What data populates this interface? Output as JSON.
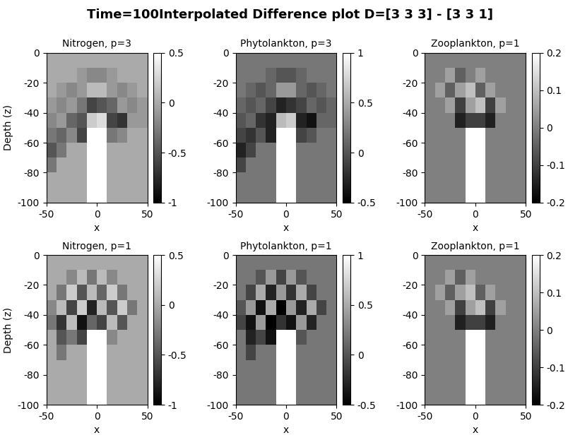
{
  "title": "Time=100Interpolated Difference plot D=[3 3 3] - [3 3 1]",
  "chart_data": [
    {
      "type": "heatmap",
      "title": "Nitrogen, p=3",
      "xlabel": "x",
      "ylabel": "Depth (z)",
      "x_edges": [
        -50,
        -40,
        -30,
        -20,
        -10,
        0,
        10,
        20,
        30,
        40,
        50
      ],
      "y_edges": [
        0,
        -10,
        -20,
        -30,
        -40,
        -50,
        -60,
        -70,
        -80,
        -90,
        -100
      ],
      "xlim": [
        -50,
        50
      ],
      "ylim": [
        -100,
        0
      ],
      "xticks": [
        -50,
        0,
        50
      ],
      "yticks": [
        -100,
        -80,
        -60,
        -40,
        -20,
        0
      ],
      "colorbar_range": [
        -1,
        0.5
      ],
      "colorbar_ticks": [
        -1,
        -0.5,
        0,
        0.5
      ],
      "cells": [
        [
          0,
          0,
          0,
          0,
          0,
          0,
          0,
          0,
          0,
          0
        ],
        [
          0,
          0,
          0,
          -0.1,
          -0.2,
          -0.2,
          -0.1,
          0,
          0,
          0
        ],
        [
          0,
          -0.1,
          -0.2,
          -0.1,
          0.1,
          0.1,
          -0.1,
          -0.2,
          -0.1,
          0
        ],
        [
          -0.1,
          -0.2,
          -0.1,
          -0.3,
          -0.6,
          -0.5,
          -0.4,
          -0.1,
          -0.2,
          -0.1
        ],
        [
          -0.2,
          -0.1,
          -0.4,
          -0.5,
          0.2,
          0.3,
          -0.6,
          -0.7,
          -0.1,
          -0.1
        ],
        [
          -0.3,
          -0.4,
          -0.2,
          -0.6,
          null,
          null,
          -0.3,
          -0.2,
          0,
          0
        ],
        [
          -0.5,
          -0.3,
          0,
          0,
          null,
          null,
          0,
          0,
          0,
          0
        ],
        [
          -0.3,
          0,
          0,
          0,
          null,
          null,
          0,
          0,
          0,
          0
        ],
        [
          0,
          0,
          0,
          0,
          null,
          null,
          0,
          0,
          0,
          0
        ],
        [
          0,
          0,
          0,
          0,
          null,
          null,
          0,
          0,
          0,
          0
        ]
      ]
    },
    {
      "type": "heatmap",
      "title": "Phytolankton, p=3",
      "xlabel": "x",
      "x_edges": [
        -50,
        -40,
        -30,
        -20,
        -10,
        0,
        10,
        20,
        30,
        40,
        50
      ],
      "y_edges": [
        0,
        -10,
        -20,
        -30,
        -40,
        -50,
        -60,
        -70,
        -80,
        -90,
        -100
      ],
      "xlim": [
        -50,
        50
      ],
      "ylim": [
        -100,
        0
      ],
      "xticks": [
        -50,
        0,
        50
      ],
      "yticks": [
        -100,
        -80,
        -60,
        -40,
        -20,
        0
      ],
      "colorbar_range": [
        -0.5,
        1
      ],
      "colorbar_ticks": [
        -0.5,
        0,
        0.5,
        1
      ],
      "cells": [
        [
          0.2,
          0.2,
          0.2,
          0.2,
          0.2,
          0.2,
          0.2,
          0.2,
          0.2,
          0.2
        ],
        [
          0.2,
          0.2,
          0.2,
          0.1,
          0,
          0,
          0.1,
          0.2,
          0.2,
          0.2
        ],
        [
          0.2,
          0.1,
          0,
          0.1,
          0.4,
          0.4,
          0.1,
          0,
          0.1,
          0.2
        ],
        [
          0.1,
          0,
          0.1,
          -0.1,
          -0.3,
          -0.2,
          -0.1,
          0.1,
          0,
          0.1
        ],
        [
          0,
          0.1,
          -0.2,
          -0.3,
          0.6,
          0.7,
          -0.3,
          -0.4,
          0.1,
          0.1
        ],
        [
          -0.1,
          -0.2,
          0,
          -0.3,
          null,
          null,
          -0.1,
          0,
          0.2,
          0.2
        ],
        [
          -0.3,
          -0.1,
          0.2,
          0.2,
          null,
          null,
          0.2,
          0.2,
          0.2,
          0.2
        ],
        [
          -0.1,
          0.2,
          0.2,
          0.2,
          null,
          null,
          0.2,
          0.2,
          0.2,
          0.2
        ],
        [
          0.2,
          0.2,
          0.2,
          0.2,
          null,
          null,
          0.2,
          0.2,
          0.2,
          0.2
        ],
        [
          0.2,
          0.2,
          0.2,
          0.2,
          null,
          null,
          0.2,
          0.2,
          0.2,
          0.2
        ]
      ]
    },
    {
      "type": "heatmap",
      "title": "Zooplankton, p=1",
      "xlabel": "x",
      "x_edges": [
        -50,
        -40,
        -30,
        -20,
        -10,
        0,
        10,
        20,
        30,
        40,
        50
      ],
      "y_edges": [
        0,
        -10,
        -20,
        -30,
        -40,
        -50,
        -60,
        -70,
        -80,
        -90,
        -100
      ],
      "xlim": [
        -50,
        50
      ],
      "ylim": [
        -100,
        0
      ],
      "xticks": [
        -50,
        0,
        50
      ],
      "yticks": [
        -100,
        -80,
        -60,
        -40,
        -20,
        0
      ],
      "colorbar_range": [
        -0.2,
        0.2
      ],
      "colorbar_ticks": [
        -0.2,
        -0.1,
        0,
        0.1,
        0.2
      ],
      "cells": [
        [
          0,
          0,
          0,
          0,
          0,
          0,
          0,
          0,
          0,
          0
        ],
        [
          0,
          0,
          0.05,
          -0.05,
          0,
          0.05,
          0,
          0,
          0,
          0
        ],
        [
          0,
          0.05,
          -0.05,
          0.05,
          0.1,
          -0.05,
          0.05,
          0,
          0,
          0
        ],
        [
          0,
          0,
          0.05,
          -0.1,
          0.05,
          0.1,
          -0.1,
          0.05,
          0,
          0
        ],
        [
          0,
          0,
          0,
          -0.15,
          -0.1,
          -0.1,
          -0.15,
          0,
          0,
          0
        ],
        [
          0,
          0,
          0,
          0,
          null,
          null,
          0,
          0,
          0,
          0
        ],
        [
          0,
          0,
          0,
          0,
          null,
          null,
          0,
          0,
          0,
          0
        ],
        [
          0,
          0,
          0,
          0,
          null,
          null,
          0,
          0,
          0,
          0
        ],
        [
          0,
          0,
          0,
          0,
          null,
          null,
          0,
          0,
          0,
          0
        ],
        [
          0,
          0,
          0,
          0,
          null,
          null,
          0,
          0,
          0,
          0
        ]
      ]
    },
    {
      "type": "heatmap",
      "title": "Nitrogen, p=1",
      "xlabel": "x",
      "ylabel": "Depth (z)",
      "x_edges": [
        -50,
        -40,
        -30,
        -20,
        -10,
        0,
        10,
        20,
        30,
        40,
        50
      ],
      "y_edges": [
        0,
        -10,
        -20,
        -30,
        -40,
        -50,
        -60,
        -70,
        -80,
        -90,
        -100
      ],
      "xlim": [
        -50,
        50
      ],
      "ylim": [
        -100,
        0
      ],
      "xticks": [
        -50,
        0,
        50
      ],
      "yticks": [
        -100,
        -80,
        -60,
        -40,
        -20,
        0
      ],
      "colorbar_range": [
        -1,
        0.5
      ],
      "colorbar_ticks": [
        -1,
        -0.5,
        0,
        0.5
      ],
      "cells": [
        [
          0,
          0,
          0,
          0,
          0,
          0,
          0,
          0,
          0,
          0
        ],
        [
          0,
          0,
          -0.2,
          0.1,
          -0.3,
          0.1,
          -0.2,
          0,
          0,
          0
        ],
        [
          0,
          -0.3,
          0.2,
          -0.5,
          0.1,
          -0.4,
          0.2,
          -0.3,
          0,
          0
        ],
        [
          -0.2,
          0.1,
          -0.6,
          0.2,
          -0.8,
          0.1,
          -0.5,
          0.2,
          -0.3,
          0
        ],
        [
          -0.3,
          -0.7,
          0.1,
          -0.9,
          -0.4,
          -0.6,
          0.1,
          -0.5,
          0,
          0
        ],
        [
          0,
          -0.5,
          -0.3,
          -0.6,
          null,
          null,
          -0.2,
          0,
          0,
          0
        ],
        [
          0,
          -0.3,
          0,
          0,
          null,
          null,
          0,
          0,
          0,
          0
        ],
        [
          0,
          0,
          0,
          0,
          null,
          null,
          0,
          0,
          0,
          0
        ],
        [
          0,
          0,
          0,
          0,
          null,
          null,
          0,
          0,
          0,
          0
        ],
        [
          0,
          0,
          0,
          0,
          null,
          null,
          0,
          0,
          0,
          0
        ]
      ]
    },
    {
      "type": "heatmap",
      "title": "Phytolankton, p=1",
      "xlabel": "x",
      "x_edges": [
        -50,
        -40,
        -30,
        -20,
        -10,
        0,
        10,
        20,
        30,
        40,
        50
      ],
      "y_edges": [
        0,
        -10,
        -20,
        -30,
        -40,
        -50,
        -60,
        -70,
        -80,
        -90,
        -100
      ],
      "xlim": [
        -50,
        50
      ],
      "ylim": [
        -100,
        0
      ],
      "xticks": [
        -50,
        0,
        50
      ],
      "yticks": [
        -100,
        -80,
        -60,
        -40,
        -20,
        0
      ],
      "colorbar_range": [
        -0.5,
        1
      ],
      "colorbar_ticks": [
        -0.5,
        0,
        0.5,
        1
      ],
      "cells": [
        [
          0.2,
          0.2,
          0.2,
          0.2,
          0.2,
          0.2,
          0.2,
          0.2,
          0.2,
          0.2
        ],
        [
          0.2,
          0.2,
          0,
          0.4,
          -0.1,
          0.4,
          0,
          0.2,
          0.2,
          0.2
        ],
        [
          0.2,
          -0.1,
          0.5,
          -0.3,
          0.4,
          -0.2,
          0.5,
          -0.1,
          0.2,
          0.2
        ],
        [
          0,
          0.4,
          -0.4,
          0.5,
          -0.5,
          0.4,
          -0.3,
          0.5,
          -0.1,
          0.2
        ],
        [
          -0.1,
          -0.4,
          0.4,
          -0.5,
          -0.2,
          -0.4,
          0.4,
          -0.3,
          0.2,
          0.2
        ],
        [
          0.2,
          -0.3,
          -0.1,
          -0.4,
          null,
          null,
          0,
          0.2,
          0.2,
          0.2
        ],
        [
          0.2,
          -0.1,
          0.2,
          0.2,
          null,
          null,
          0.2,
          0.2,
          0.2,
          0.2
        ],
        [
          0.2,
          0.2,
          0.2,
          0.2,
          null,
          null,
          0.2,
          0.2,
          0.2,
          0.2
        ],
        [
          0.2,
          0.2,
          0.2,
          0.2,
          null,
          null,
          0.2,
          0.2,
          0.2,
          0.2
        ],
        [
          0.2,
          0.2,
          0.2,
          0.2,
          null,
          null,
          0.2,
          0.2,
          0.2,
          0.2
        ]
      ]
    },
    {
      "type": "heatmap",
      "title": "Zooplankton, p=1",
      "xlabel": "x",
      "x_edges": [
        -50,
        -40,
        -30,
        -20,
        -10,
        0,
        10,
        20,
        30,
        40,
        50
      ],
      "y_edges": [
        0,
        -10,
        -20,
        -30,
        -40,
        -50,
        -60,
        -70,
        -80,
        -90,
        -100
      ],
      "xlim": [
        -50,
        50
      ],
      "ylim": [
        -100,
        0
      ],
      "xticks": [
        -50,
        0,
        50
      ],
      "yticks": [
        -100,
        -80,
        -60,
        -40,
        -20,
        0
      ],
      "colorbar_range": [
        -0.2,
        0.2
      ],
      "colorbar_ticks": [
        -0.2,
        -0.1,
        0,
        0.1,
        0.2
      ],
      "cells": [
        [
          0,
          0,
          0,
          0,
          0,
          0,
          0,
          0,
          0,
          0
        ],
        [
          0,
          0,
          0.05,
          -0.05,
          0.05,
          0,
          0,
          0,
          0,
          0
        ],
        [
          0,
          0.05,
          -0.05,
          0.05,
          0.1,
          -0.05,
          0.05,
          0,
          0,
          0
        ],
        [
          0,
          0,
          0.05,
          -0.1,
          0.05,
          0.1,
          -0.1,
          0.05,
          0,
          0
        ],
        [
          0,
          0,
          0,
          -0.15,
          -0.1,
          -0.1,
          -0.15,
          0,
          0,
          0
        ],
        [
          0,
          0,
          0,
          0,
          null,
          null,
          0,
          0,
          0,
          0
        ],
        [
          0,
          0,
          0,
          0,
          null,
          null,
          0,
          0,
          0,
          0
        ],
        [
          0,
          0,
          0,
          0,
          null,
          null,
          0,
          0,
          0,
          0
        ],
        [
          0,
          0,
          0,
          0,
          null,
          null,
          0,
          0,
          0,
          0
        ],
        [
          0,
          0,
          0,
          0,
          null,
          null,
          0,
          0,
          0,
          0
        ]
      ]
    }
  ]
}
